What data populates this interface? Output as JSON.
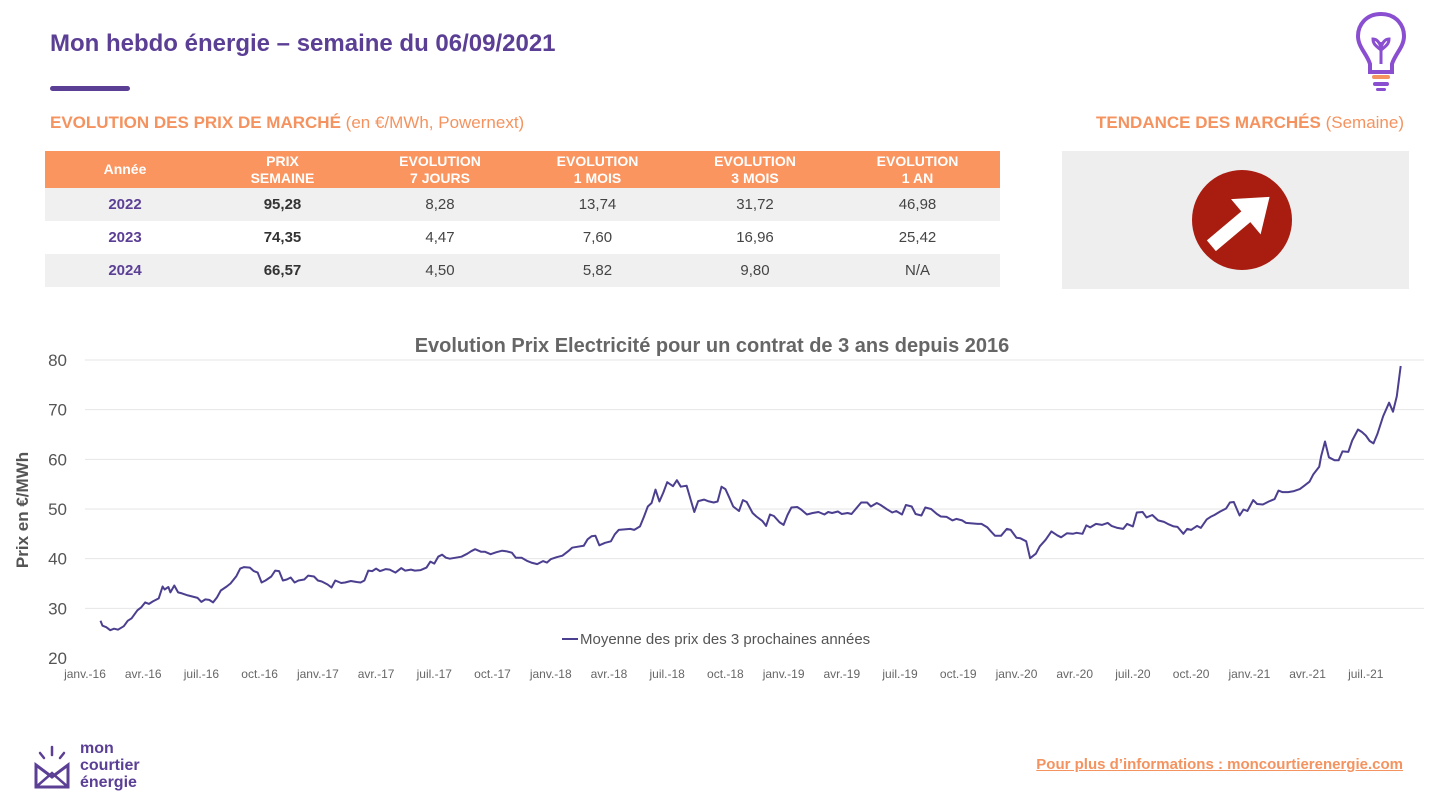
{
  "header": {
    "title": "Mon hebdo énergie – semaine du 06/09/2021"
  },
  "market": {
    "title": "EVOLUTION DES PRIX DE MARCHÉ",
    "subtitle": "(en €/MWh, Powernext)",
    "columns": [
      {
        "line1": "Année",
        "line2": ""
      },
      {
        "line1": "PRIX",
        "line2": "SEMAINE"
      },
      {
        "line1": "EVOLUTION",
        "line2": "7 JOURS"
      },
      {
        "line1": "EVOLUTION",
        "line2": "1 MOIS"
      },
      {
        "line1": "EVOLUTION",
        "line2": "3 MOIS"
      },
      {
        "line1": "EVOLUTION",
        "line2": "1 AN"
      }
    ],
    "rows": [
      {
        "year": "2022",
        "price": "95,28",
        "d7": "8,28",
        "m1": "13,74",
        "m3": "31,72",
        "y1": "46,98"
      },
      {
        "year": "2023",
        "price": "74,35",
        "d7": "4,47",
        "m1": "7,60",
        "m3": "16,96",
        "y1": "25,42"
      },
      {
        "year": "2024",
        "price": "66,57",
        "d7": "4,50",
        "m1": "5,82",
        "m3": "9,80",
        "y1": "N/A"
      }
    ]
  },
  "trend": {
    "title": "TENDANCE DES MARCHÉS",
    "subtitle": "(Semaine)",
    "direction": "up",
    "icon": "arrow-up-right-icon",
    "color": "#a81d10"
  },
  "chart_data": {
    "type": "line",
    "title": "Evolution Prix Electricité pour un contrat de 3 ans depuis 2016",
    "ylabel": "Prix en €/MWh",
    "xlabel": "",
    "ylim": [
      20,
      80
    ],
    "yticks": [
      20,
      30,
      40,
      50,
      60,
      70,
      80
    ],
    "grid": true,
    "legend": "bottom-center",
    "x_ticks": [
      "janv.-16",
      "avr.-16",
      "juil.-16",
      "oct.-16",
      "janv.-17",
      "avr.-17",
      "juil.-17",
      "oct.-17",
      "janv.-18",
      "avr.-18",
      "juil.-18",
      "oct.-18",
      "janv.-19",
      "avr.-19",
      "juil.-19",
      "oct.-19",
      "janv.-20",
      "avr.-20",
      "juil.-20",
      "oct.-20",
      "janv.-21",
      "avr.-21",
      "juil.-21"
    ],
    "series": [
      {
        "name": "Moyenne des prix des 3 prochaines années",
        "color": "#4b3f8f",
        "x_unit": "months since janv.-16",
        "points": [
          [
            0.8,
            27.5
          ],
          [
            0.9,
            26.5
          ],
          [
            1.1,
            26.2
          ],
          [
            1.3,
            25.6
          ],
          [
            1.5,
            25.9
          ],
          [
            1.7,
            25.7
          ],
          [
            2.0,
            26.4
          ],
          [
            2.2,
            27.5
          ],
          [
            2.4,
            28.0
          ],
          [
            2.7,
            29.6
          ],
          [
            2.9,
            30.2
          ],
          [
            3.1,
            31.2
          ],
          [
            3.3,
            30.9
          ],
          [
            3.5,
            31.4
          ],
          [
            3.8,
            32.0
          ],
          [
            4.0,
            34.4
          ],
          [
            4.1,
            33.8
          ],
          [
            4.3,
            34.3
          ],
          [
            4.4,
            33.2
          ],
          [
            4.6,
            34.6
          ],
          [
            4.8,
            33.2
          ],
          [
            5.0,
            33.0
          ],
          [
            5.3,
            32.6
          ],
          [
            5.6,
            32.3
          ],
          [
            5.8,
            32.1
          ],
          [
            6.0,
            31.3
          ],
          [
            6.2,
            31.8
          ],
          [
            6.4,
            31.7
          ],
          [
            6.6,
            31.2
          ],
          [
            6.8,
            32.2
          ],
          [
            7.0,
            33.6
          ],
          [
            7.3,
            34.4
          ],
          [
            7.5,
            35.0
          ],
          [
            7.8,
            36.5
          ],
          [
            8.0,
            38.0
          ],
          [
            8.2,
            38.3
          ],
          [
            8.5,
            38.2
          ],
          [
            8.7,
            37.5
          ],
          [
            8.9,
            37.2
          ],
          [
            9.1,
            35.2
          ],
          [
            9.3,
            35.6
          ],
          [
            9.6,
            36.4
          ],
          [
            9.8,
            37.6
          ],
          [
            10.0,
            37.5
          ],
          [
            10.2,
            35.6
          ],
          [
            10.4,
            35.8
          ],
          [
            10.6,
            36.2
          ],
          [
            10.8,
            35.2
          ],
          [
            11.0,
            35.6
          ],
          [
            11.3,
            35.8
          ],
          [
            11.5,
            36.6
          ],
          [
            11.8,
            36.4
          ],
          [
            12.0,
            35.6
          ],
          [
            12.2,
            35.4
          ],
          [
            12.5,
            34.8
          ],
          [
            12.7,
            34.2
          ],
          [
            12.9,
            35.6
          ],
          [
            13.2,
            35.1
          ],
          [
            13.4,
            35.2
          ],
          [
            13.7,
            35.5
          ],
          [
            14.0,
            35.3
          ],
          [
            14.2,
            35.2
          ],
          [
            14.4,
            35.6
          ],
          [
            14.6,
            37.6
          ],
          [
            14.8,
            37.5
          ],
          [
            15.0,
            38.0
          ],
          [
            15.2,
            37.5
          ],
          [
            15.5,
            37.9
          ],
          [
            15.7,
            37.8
          ],
          [
            16.0,
            37.2
          ],
          [
            16.3,
            38.1
          ],
          [
            16.5,
            37.6
          ],
          [
            16.8,
            37.8
          ],
          [
            17.0,
            37.6
          ],
          [
            17.3,
            37.7
          ],
          [
            17.6,
            38.2
          ],
          [
            17.8,
            39.4
          ],
          [
            18.0,
            39.0
          ],
          [
            18.2,
            40.4
          ],
          [
            18.4,
            40.8
          ],
          [
            18.6,
            40.2
          ],
          [
            18.8,
            40.0
          ],
          [
            19.1,
            40.2
          ],
          [
            19.4,
            40.4
          ],
          [
            19.7,
            41.0
          ],
          [
            19.9,
            41.5
          ],
          [
            20.1,
            41.9
          ],
          [
            20.4,
            41.4
          ],
          [
            20.6,
            41.4
          ],
          [
            20.9,
            40.9
          ],
          [
            21.2,
            41.3
          ],
          [
            21.5,
            41.6
          ],
          [
            21.7,
            41.5
          ],
          [
            22.0,
            41.2
          ],
          [
            22.2,
            40.2
          ],
          [
            22.5,
            40.2
          ],
          [
            22.8,
            39.5
          ],
          [
            23.0,
            39.2
          ],
          [
            23.3,
            38.9
          ],
          [
            23.6,
            39.5
          ],
          [
            23.8,
            39.2
          ],
          [
            24.0,
            39.9
          ],
          [
            24.3,
            40.3
          ],
          [
            24.6,
            40.6
          ],
          [
            24.9,
            41.5
          ],
          [
            25.1,
            42.2
          ],
          [
            25.4,
            42.4
          ],
          [
            25.7,
            42.6
          ],
          [
            25.9,
            43.9
          ],
          [
            26.1,
            44.5
          ],
          [
            26.3,
            44.6
          ],
          [
            26.5,
            42.7
          ],
          [
            26.8,
            43.2
          ],
          [
            27.1,
            43.5
          ],
          [
            27.3,
            44.9
          ],
          [
            27.5,
            45.8
          ],
          [
            27.8,
            45.9
          ],
          [
            28.1,
            46.0
          ],
          [
            28.3,
            45.8
          ],
          [
            28.6,
            46.5
          ],
          [
            28.8,
            48.4
          ],
          [
            29.0,
            50.5
          ],
          [
            29.2,
            51.2
          ],
          [
            29.4,
            53.9
          ],
          [
            29.6,
            51.5
          ],
          [
            29.8,
            53.3
          ],
          [
            30.0,
            55.4
          ],
          [
            30.3,
            54.6
          ],
          [
            30.5,
            55.8
          ],
          [
            30.7,
            54.5
          ],
          [
            31.0,
            54.7
          ],
          [
            31.2,
            52.0
          ],
          [
            31.4,
            49.4
          ],
          [
            31.6,
            51.6
          ],
          [
            31.9,
            51.9
          ],
          [
            32.1,
            51.6
          ],
          [
            32.4,
            51.3
          ],
          [
            32.6,
            51.5
          ],
          [
            32.8,
            54.5
          ],
          [
            33.0,
            54.0
          ],
          [
            33.2,
            52.3
          ],
          [
            33.4,
            50.5
          ],
          [
            33.7,
            49.6
          ],
          [
            33.9,
            51.8
          ],
          [
            34.1,
            51.4
          ],
          [
            34.4,
            49.2
          ],
          [
            34.6,
            48.5
          ],
          [
            34.9,
            47.6
          ],
          [
            35.1,
            46.6
          ],
          [
            35.3,
            48.9
          ],
          [
            35.5,
            48.6
          ],
          [
            35.8,
            47.3
          ],
          [
            36.0,
            46.8
          ],
          [
            36.2,
            48.8
          ],
          [
            36.4,
            50.3
          ],
          [
            36.7,
            50.4
          ],
          [
            36.9,
            49.9
          ],
          [
            37.2,
            48.9
          ],
          [
            37.5,
            49.2
          ],
          [
            37.8,
            49.4
          ],
          [
            38.1,
            48.9
          ],
          [
            38.3,
            49.4
          ],
          [
            38.5,
            49.2
          ],
          [
            38.8,
            49.5
          ],
          [
            39.0,
            49.0
          ],
          [
            39.3,
            49.2
          ],
          [
            39.5,
            49.0
          ],
          [
            39.8,
            50.4
          ],
          [
            40.0,
            51.3
          ],
          [
            40.3,
            51.3
          ],
          [
            40.5,
            50.5
          ],
          [
            40.8,
            51.2
          ],
          [
            41.0,
            50.8
          ],
          [
            41.3,
            50.0
          ],
          [
            41.6,
            49.3
          ],
          [
            41.8,
            49.6
          ],
          [
            42.1,
            48.9
          ],
          [
            42.3,
            50.8
          ],
          [
            42.6,
            50.5
          ],
          [
            42.8,
            49.0
          ],
          [
            43.1,
            48.7
          ],
          [
            43.3,
            50.3
          ],
          [
            43.6,
            50.0
          ],
          [
            43.9,
            49.0
          ],
          [
            44.1,
            48.5
          ],
          [
            44.4,
            48.4
          ],
          [
            44.7,
            47.7
          ],
          [
            44.9,
            48.0
          ],
          [
            45.2,
            47.7
          ],
          [
            45.4,
            47.2
          ],
          [
            45.7,
            47.1
          ],
          [
            46.0,
            47.0
          ],
          [
            46.2,
            47.0
          ],
          [
            46.5,
            46.3
          ],
          [
            46.7,
            45.4
          ],
          [
            46.9,
            44.6
          ],
          [
            47.2,
            44.6
          ],
          [
            47.5,
            46.0
          ],
          [
            47.7,
            45.8
          ],
          [
            48.0,
            44.2
          ],
          [
            48.2,
            44.1
          ],
          [
            48.5,
            43.5
          ],
          [
            48.7,
            40.1
          ],
          [
            49.0,
            41.0
          ],
          [
            49.2,
            42.5
          ],
          [
            49.5,
            43.8
          ],
          [
            49.8,
            45.5
          ],
          [
            50.1,
            44.7
          ],
          [
            50.3,
            44.3
          ],
          [
            50.6,
            45.1
          ],
          [
            50.9,
            45.0
          ],
          [
            51.1,
            45.2
          ],
          [
            51.4,
            45.0
          ],
          [
            51.6,
            46.7
          ],
          [
            51.8,
            46.3
          ],
          [
            52.1,
            47.0
          ],
          [
            52.4,
            46.8
          ],
          [
            52.7,
            47.2
          ],
          [
            52.9,
            46.6
          ],
          [
            53.2,
            46.2
          ],
          [
            53.5,
            46.0
          ],
          [
            53.7,
            47.0
          ],
          [
            54.0,
            46.5
          ],
          [
            54.2,
            49.3
          ],
          [
            54.5,
            49.4
          ],
          [
            54.7,
            48.3
          ],
          [
            55.0,
            48.8
          ],
          [
            55.3,
            47.7
          ],
          [
            55.6,
            47.4
          ],
          [
            55.8,
            47.0
          ],
          [
            56.1,
            46.5
          ],
          [
            56.3,
            46.4
          ],
          [
            56.6,
            45.0
          ],
          [
            56.8,
            46.0
          ],
          [
            57.0,
            45.8
          ],
          [
            57.3,
            46.6
          ],
          [
            57.5,
            46.2
          ],
          [
            57.8,
            47.9
          ],
          [
            58.0,
            48.4
          ],
          [
            58.2,
            48.8
          ],
          [
            58.5,
            49.5
          ],
          [
            58.8,
            50.1
          ],
          [
            59.0,
            51.3
          ],
          [
            59.2,
            51.4
          ],
          [
            59.5,
            48.7
          ],
          [
            59.7,
            49.9
          ],
          [
            59.9,
            49.6
          ],
          [
            60.2,
            51.8
          ],
          [
            60.4,
            51.0
          ],
          [
            60.7,
            50.9
          ],
          [
            61.0,
            51.5
          ],
          [
            61.3,
            52.0
          ],
          [
            61.5,
            53.7
          ],
          [
            61.7,
            53.4
          ],
          [
            62.0,
            53.4
          ],
          [
            62.3,
            53.6
          ],
          [
            62.6,
            54.0
          ],
          [
            62.8,
            54.6
          ],
          [
            63.1,
            55.5
          ],
          [
            63.3,
            57.0
          ],
          [
            63.6,
            58.5
          ],
          [
            63.7,
            60.6
          ],
          [
            63.9,
            63.6
          ],
          [
            64.1,
            60.4
          ],
          [
            64.4,
            59.8
          ],
          [
            64.6,
            59.8
          ],
          [
            64.8,
            61.6
          ],
          [
            65.1,
            61.5
          ],
          [
            65.3,
            63.8
          ],
          [
            65.6,
            66.0
          ],
          [
            65.8,
            65.5
          ],
          [
            66.0,
            64.8
          ],
          [
            66.2,
            63.7
          ],
          [
            66.4,
            63.2
          ],
          [
            66.6,
            65.1
          ],
          [
            66.9,
            68.7
          ],
          [
            67.2,
            71.4
          ],
          [
            67.4,
            69.6
          ],
          [
            67.6,
            72.7
          ],
          [
            67.8,
            78.8
          ]
        ]
      }
    ]
  },
  "footer": {
    "logo_lines": [
      "mon",
      "courtier",
      "énergie"
    ],
    "link_text": "Pour plus d’informations : moncourtierenergie.com"
  }
}
